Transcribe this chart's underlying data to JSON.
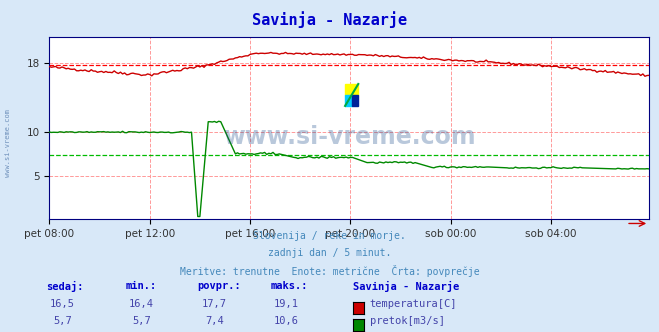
{
  "title": "Savinja - Nazarje",
  "title_color": "#0000cc",
  "bg_color": "#d8e8f8",
  "plot_bg_color": "#ffffff",
  "grid_color_v": "#ff9999",
  "grid_color_h": "#ff9999",
  "x_tick_labels": [
    "pet 08:00",
    "pet 12:00",
    "pet 16:00",
    "pet 20:00",
    "sob 00:00",
    "sob 04:00"
  ],
  "x_tick_positions": [
    0,
    48,
    96,
    144,
    192,
    240
  ],
  "total_points": 288,
  "ylim": [
    0,
    21
  ],
  "temp_avg": 17.7,
  "flow_avg": 7.4,
  "temp_color": "#cc0000",
  "flow_color": "#008800",
  "avg_line_color_red": "#ff0000",
  "avg_line_color_green": "#00bb00",
  "watermark_text": "www.si-vreme.com",
  "watermark_color": "#1a4a8a",
  "watermark_alpha": 0.3,
  "subtitle_lines": [
    "Slovenija / reke in morje.",
    "zadnji dan / 5 minut.",
    "Meritve: trenutne  Enote: metrične  Črta: povprečje"
  ],
  "subtitle_color": "#4488bb",
  "table_headers": [
    "sedaj:",
    "min.:",
    "povpr.:",
    "maks.:"
  ],
  "table_header_color": "#0000cc",
  "table_temp_row": [
    "16,5",
    "16,4",
    "17,7",
    "19,1"
  ],
  "table_flow_row": [
    "5,7",
    "5,7",
    "7,4",
    "10,6"
  ],
  "table_data_color": "#4444aa",
  "legend_title": "Savinja - Nazarje",
  "legend_color": "#0000cc",
  "border_color": "#000080",
  "left_label": "www.si-vreme.com",
  "left_label_color": "#1a4a8a",
  "logo_yellow": "#ffff00",
  "logo_cyan": "#00ccff",
  "logo_blue": "#002299",
  "logo_green": "#00aa44"
}
